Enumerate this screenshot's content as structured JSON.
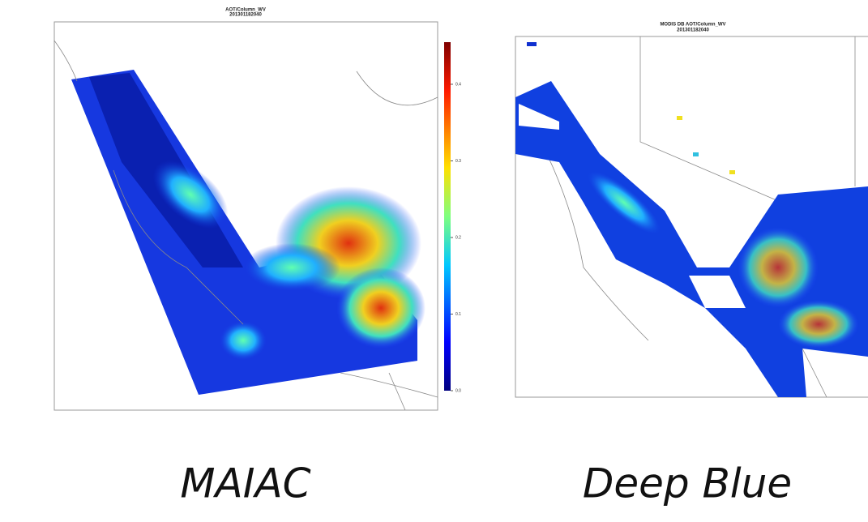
{
  "panels": [
    {
      "title": "AOT/Column_WV",
      "subtitle": "201301182040",
      "caption": "MAIAC",
      "colorbar": {
        "lim": [
          0,
          0.455
        ],
        "ticks": [
          {
            "value": 0,
            "label": "0.0"
          },
          0.1,
          0.2,
          0.3,
          0.4
        ]
      }
    },
    {
      "title": "MODIS DB AOT/Column_WV",
      "subtitle": "201301182040",
      "caption": "Deep Blue"
    }
  ]
}
